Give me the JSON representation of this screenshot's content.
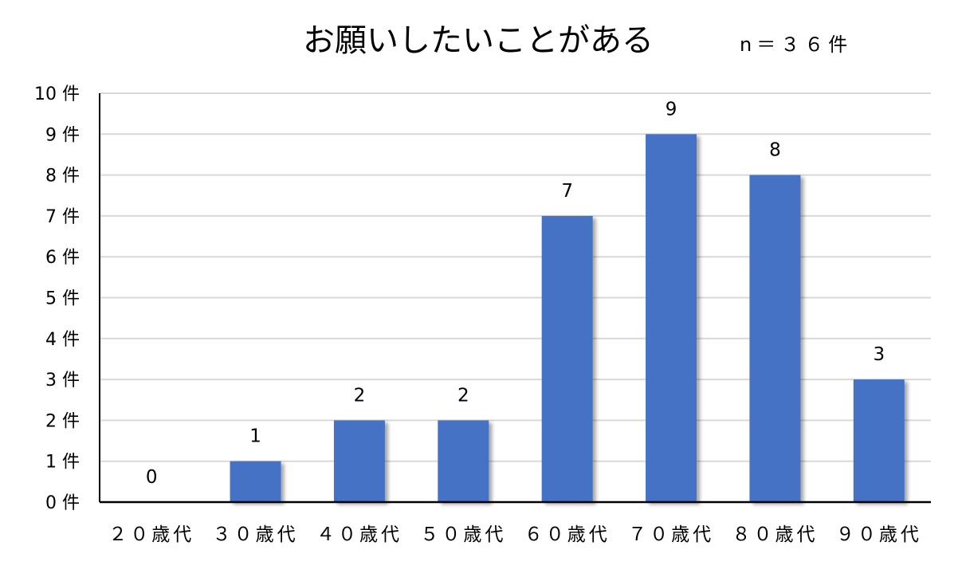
{
  "chart_data": {
    "type": "bar",
    "title": "お願いしたいことがある",
    "subtitle": "n＝３６件",
    "categories": [
      "２０歳代",
      "３０歳代",
      "４０歳代",
      "５０歳代",
      "６０歳代",
      "７０歳代",
      "８０歳代",
      "９０歳代"
    ],
    "values": [
      0,
      1,
      2,
      2,
      7,
      9,
      8,
      3
    ],
    "data_labels": [
      "0",
      "1",
      "2",
      "2",
      "7",
      "9",
      "8",
      "3"
    ],
    "y_ticks": [
      {
        "value": 0,
        "label": "0 件"
      },
      {
        "value": 1,
        "label": "1 件"
      },
      {
        "value": 2,
        "label": "2 件"
      },
      {
        "value": 3,
        "label": "3 件"
      },
      {
        "value": 4,
        "label": "4 件"
      },
      {
        "value": 5,
        "label": "5 件"
      },
      {
        "value": 6,
        "label": "6 件"
      },
      {
        "value": 7,
        "label": "7 件"
      },
      {
        "value": 8,
        "label": "8 件"
      },
      {
        "value": 9,
        "label": "9 件"
      },
      {
        "value": 10,
        "label": "10 件"
      }
    ],
    "ylim": [
      0,
      10
    ],
    "grid": true,
    "legend": "none",
    "colors": {
      "bar": "#4472C4",
      "grid": "#D9D9D9",
      "axis": "#000000"
    }
  }
}
